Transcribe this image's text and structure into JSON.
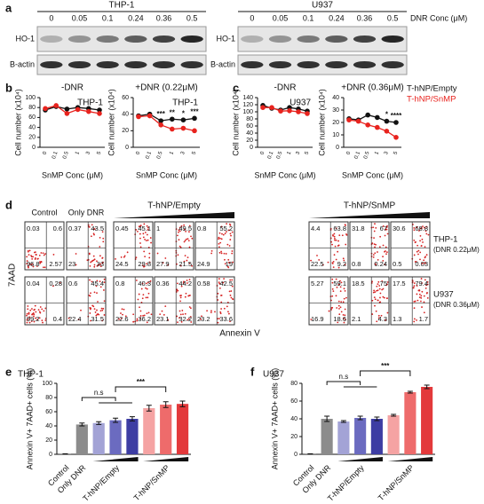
{
  "panel_labels": [
    "a",
    "b",
    "c",
    "d",
    "e",
    "f"
  ],
  "blots": {
    "conc_label": "DNR Conc (μM)",
    "rows": [
      "HO-1",
      "B-actin"
    ],
    "lines": [
      {
        "name": "THP-1",
        "conc": [
          "0",
          "0.05",
          "0.1",
          "0.24",
          "0.36",
          "0.5"
        ]
      },
      {
        "name": "U937",
        "conc": [
          "0",
          "0.05",
          "0.1",
          "0.24",
          "0.36",
          "0.5"
        ]
      }
    ]
  },
  "chart_data": [
    {
      "type": "line",
      "title": "-DNR",
      "annotation": "THP-1",
      "x_label": "SnMP Conc (μM)",
      "y_label": "Cell number (x10⁴)",
      "categories": [
        "0",
        "0.1",
        "0.5",
        "1",
        "3",
        "5"
      ],
      "ylim": [
        0,
        100
      ],
      "yticks": [
        0,
        20,
        40,
        60,
        80,
        100
      ],
      "series": [
        {
          "name": "T-hNP/Empty",
          "color": "#111111",
          "values": [
            75,
            82,
            77,
            80,
            78,
            75
          ]
        },
        {
          "name": "T-hNP/SnMP",
          "color": "#e8231e",
          "values": [
            78,
            84,
            68,
            76,
            72,
            68
          ]
        }
      ],
      "stars": []
    },
    {
      "type": "line",
      "title": "+DNR (0.22μM)",
      "annotation": "THP-1",
      "x_label": "SnMP Conc (μM)",
      "y_label": "Cell number (x10⁴)",
      "categories": [
        "0",
        "0.1",
        "0.5",
        "1",
        "3",
        "5"
      ],
      "ylim": [
        0,
        60
      ],
      "yticks": [
        0,
        20,
        40,
        60
      ],
      "series": [
        {
          "name": "T-hNP/Empty",
          "color": "#111111",
          "values": [
            38,
            40,
            32,
            34,
            33,
            35
          ]
        },
        {
          "name": "T-hNP/SnMP",
          "color": "#e8231e",
          "values": [
            37,
            38,
            27,
            22,
            23,
            20
          ]
        }
      ],
      "stars": [
        {
          "text": "***",
          "at": "0.5"
        },
        {
          "text": "**",
          "at": "1"
        },
        {
          "text": "*",
          "at": "3"
        },
        {
          "text": "***",
          "at": "5"
        }
      ]
    },
    {
      "type": "line",
      "title": "-DNR",
      "annotation": "U937",
      "x_label": "SnMP Conc (μM)",
      "y_label": "Cell number (x10⁴)",
      "categories": [
        "0",
        "0.1",
        "0.5",
        "1",
        "3",
        "5"
      ],
      "ylim": [
        0,
        140
      ],
      "yticks": [
        0,
        20,
        40,
        60,
        80,
        100,
        120,
        140
      ],
      "series": [
        {
          "name": "T-hNP/Empty",
          "color": "#111111",
          "values": [
            118,
            110,
            105,
            112,
            108,
            102
          ]
        },
        {
          "name": "T-hNP/SnMP",
          "color": "#e8231e",
          "values": [
            112,
            112,
            102,
            103,
            100,
            95
          ]
        }
      ],
      "stars": []
    },
    {
      "type": "line",
      "title": "+DNR (0.36μM)",
      "annotation": "",
      "x_label": "SnMP Conc (μM)",
      "y_label": "Cell number (x10⁴)",
      "categories": [
        "0",
        "0.1",
        "0.5",
        "1",
        "3",
        "5"
      ],
      "ylim": [
        0,
        40
      ],
      "yticks": [
        0,
        10,
        20,
        30,
        40
      ],
      "series": [
        {
          "name": "T-hNP/Empty",
          "color": "#111111",
          "values": [
            23,
            22,
            26,
            24,
            21,
            20
          ]
        },
        {
          "name": "T-hNP/SnMP",
          "color": "#e8231e",
          "values": [
            22,
            21,
            18,
            16,
            13,
            8
          ]
        }
      ],
      "stars": [
        {
          "text": "*",
          "at": "3"
        },
        {
          "text": "****",
          "at": "5"
        }
      ]
    },
    {
      "type": "bar",
      "annotation": "THP-1",
      "y_label": "Annexin V+ 7AAD+ cells (%)",
      "categories": [
        "Control",
        "Only DNR",
        null,
        "T-hNP/Empty",
        null,
        null,
        "T-hNP/SnMP",
        null
      ],
      "values": [
        0.5,
        42,
        44,
        48,
        50,
        65,
        70,
        71
      ],
      "errors": [
        0.3,
        2,
        2,
        3,
        3,
        4,
        4,
        4
      ],
      "colors": [
        "#555555",
        "#8c8c8c",
        "#a3a3d6",
        "#6b6bc0",
        "#3d3da3",
        "#f5a3a3",
        "#ee6b6b",
        "#e3393b"
      ],
      "ylim": [
        0,
        100
      ],
      "yticks": [
        0,
        20,
        40,
        60,
        80,
        100
      ],
      "brackets": [
        "n.s",
        "***"
      ]
    },
    {
      "type": "bar",
      "annotation": "U937",
      "y_label": "Annexin V+ 7AAD+ cells (%)",
      "categories": [
        "Control",
        "Only DNR",
        null,
        "T-hNP/Empty",
        null,
        null,
        "T-hNP/SnMP",
        null
      ],
      "values": [
        0.3,
        40,
        37,
        41,
        40,
        44,
        70,
        76
      ],
      "errors": [
        0.3,
        3,
        1,
        2,
        2,
        1,
        1,
        2
      ],
      "colors": [
        "#555555",
        "#8c8c8c",
        "#a3a3d6",
        "#6b6bc0",
        "#3d3da3",
        "#f5a3a3",
        "#ee6b6b",
        "#e3393b"
      ],
      "ylim": [
        0,
        80
      ],
      "yticks": [
        0,
        20,
        40,
        60,
        80
      ],
      "brackets": [
        "n.s",
        "***"
      ]
    }
  ],
  "flow": {
    "y_label": "7AAD",
    "x_label": "Annexin V",
    "groups": [
      "Control",
      "Only DNR",
      "T-hNP/Empty",
      "T-hNP/SnMP"
    ],
    "rows": [
      {
        "label": "THP-1",
        "sublabel": "(DNR 0.22μM)",
        "plots": [
          [
            0.03,
            0.6,
            96.8,
            2.57
          ],
          [
            0.37,
            43.5,
            23,
            33
          ],
          [
            0.45,
            45.1,
            24.5,
            29.8
          ],
          [
            1,
            49.5,
            27.9,
            21.5
          ],
          [
            0.8,
            55.2,
            24.9,
            19
          ],
          [
            4.4,
            63.8,
            22.5,
            9.2
          ],
          [
            31.8,
            67,
            0.8,
            0.24
          ],
          [
            30.6,
            68.8,
            0.5,
            0.03
          ]
        ]
      },
      {
        "label": "U937",
        "sublabel": "(DNR 0.36μM)",
        "plots": [
          [
            0.04,
            0.28,
            99.2,
            0.4
          ],
          [
            0.6,
            45.4,
            22.4,
            31.5
          ],
          [
            0.8,
            40.3,
            22.6,
            36.2
          ],
          [
            0.36,
            44.2,
            23.1,
            32.2
          ],
          [
            0.58,
            42.5,
            23.2,
            33.6
          ],
          [
            5.27,
            59.1,
            16.9,
            18.6
          ],
          [
            18.5,
            75,
            2.1,
            4.3
          ],
          [
            17.5,
            79.4,
            1.3,
            1.7
          ]
        ]
      }
    ]
  }
}
